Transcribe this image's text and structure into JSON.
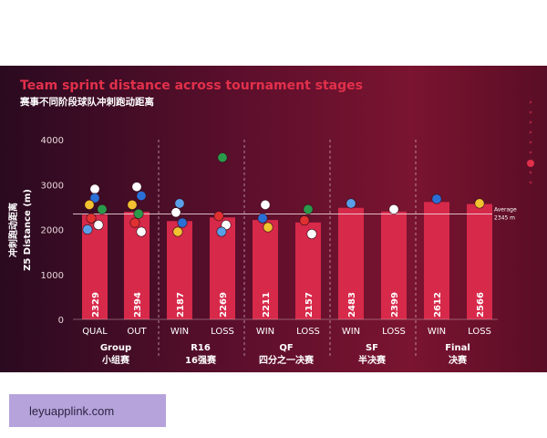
{
  "chart_data": {
    "type": "bar",
    "title": "Team sprint distance across tournament stages",
    "subtitle": "赛事不同阶段球队冲刺跑动距离",
    "ylabel": "冲刺跑动距离\nZ5 Distance (m)",
    "ylim": [
      0,
      4000
    ],
    "yticks": [
      0,
      1000,
      2000,
      3000,
      4000
    ],
    "grid": false,
    "groups": [
      {
        "label": "Group",
        "label_zh": "小组赛",
        "categories": [
          "QUAL",
          "OUT"
        ]
      },
      {
        "label": "R16",
        "label_zh": "16强赛",
        "categories": [
          "WIN",
          "LOSS"
        ]
      },
      {
        "label": "QF",
        "label_zh": "四分之一决赛",
        "categories": [
          "WIN",
          "LOSS"
        ]
      },
      {
        "label": "SF",
        "label_zh": "半决赛",
        "categories": [
          "WIN",
          "LOSS"
        ]
      },
      {
        "label": "Final",
        "label_zh": "决赛",
        "categories": [
          "WIN",
          "LOSS"
        ]
      }
    ],
    "categories": [
      "QUAL",
      "OUT",
      "WIN",
      "LOSS",
      "WIN",
      "LOSS",
      "WIN",
      "LOSS",
      "WIN",
      "LOSS"
    ],
    "values": [
      2329,
      2394,
      2187,
      2269,
      2211,
      2157,
      2483,
      2399,
      2612,
      2566
    ],
    "average": {
      "label": "Average",
      "value_label": "2345 m",
      "value": 2345
    },
    "bar_color": "#d7294a"
  },
  "watermark": {
    "text": "leyuapplink.com"
  }
}
